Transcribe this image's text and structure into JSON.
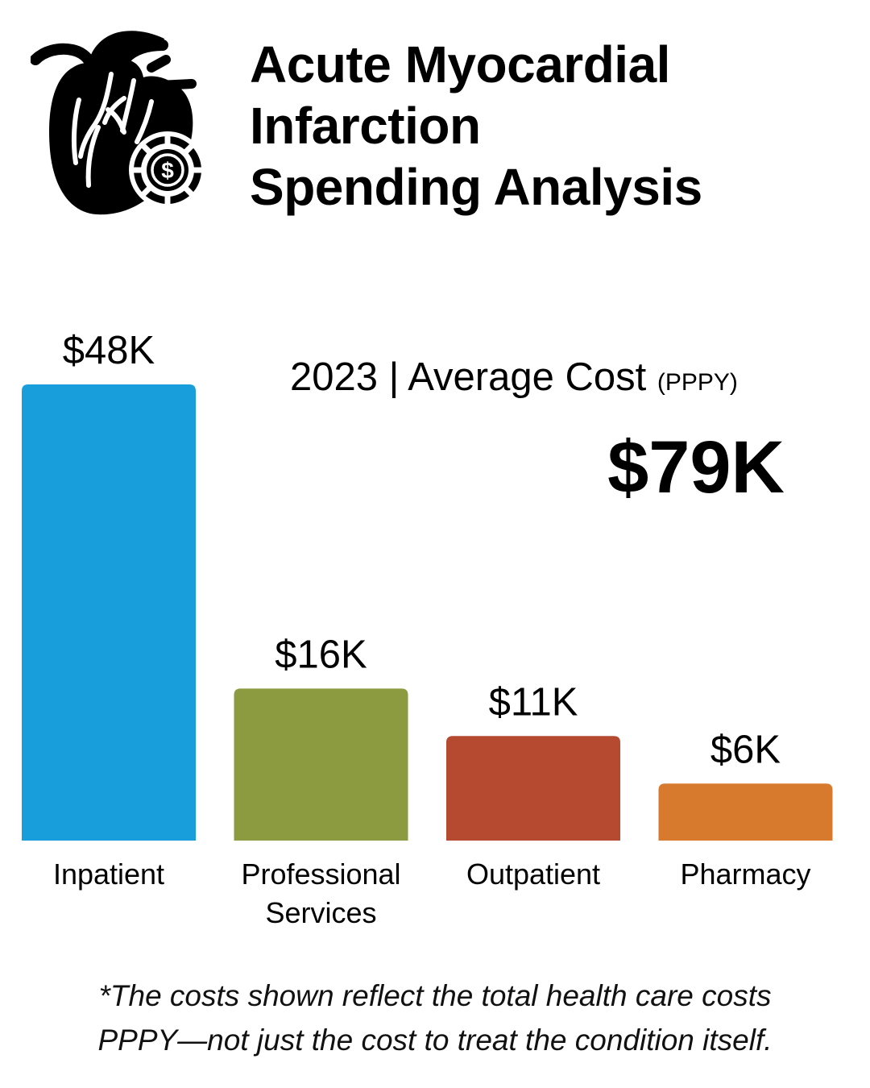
{
  "header": {
    "icon": "heart-with-dollar-coin-icon",
    "title_lines": [
      "Acute Myocardial",
      "Infarction",
      "Spending Analysis"
    ]
  },
  "summary": {
    "label": "2023 | Average Cost",
    "label_suffix": "(PPPY)",
    "total": "$79K"
  },
  "chart_data": {
    "type": "bar",
    "categories": [
      "Inpatient",
      "Professional Services",
      "Outpatient",
      "Pharmacy"
    ],
    "category_label_lines": [
      [
        "Inpatient"
      ],
      [
        "Professional",
        "Services"
      ],
      [
        "Outpatient"
      ],
      [
        "Pharmacy"
      ]
    ],
    "values": [
      48,
      16,
      11,
      6
    ],
    "value_labels": [
      "$48K",
      "$16K",
      "$11K",
      "$6K"
    ],
    "colors": [
      "#189fdb",
      "#8c9a40",
      "#b54a30",
      "#d87a2e"
    ],
    "ylim": [
      0,
      48
    ],
    "grid": false,
    "legend": "none"
  },
  "footnote": {
    "lines": [
      "*The costs shown reflect the total health care costs",
      "PPPY—not just the cost to treat the condition itself."
    ]
  }
}
